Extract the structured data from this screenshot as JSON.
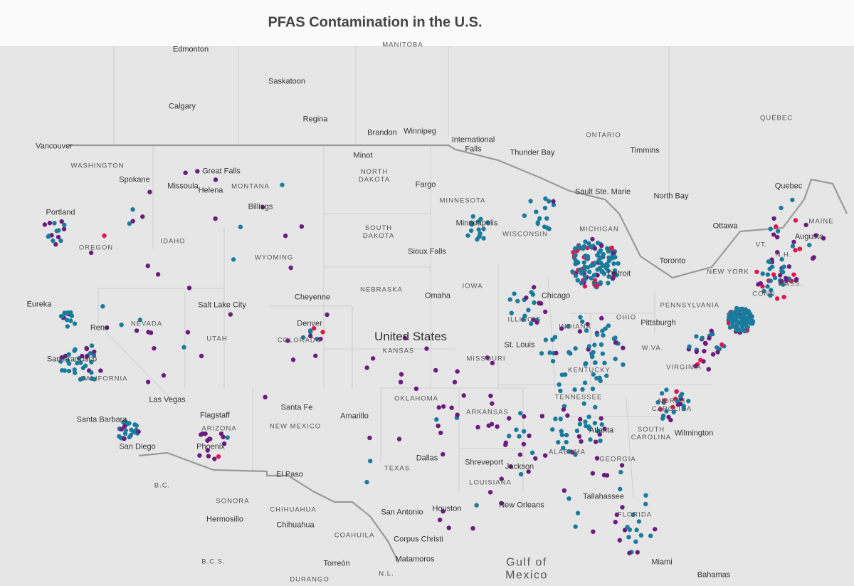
{
  "header": {
    "title": "PFAS Contamination in the U.S."
  },
  "map": {
    "cities": [
      "Edmonton",
      "Saskatoon",
      "Calgary",
      "Regina",
      "Brandon",
      "Winnipeg",
      "International Falls",
      "Thunder Bay",
      "Timmins",
      "Vancouver",
      "Spokane",
      "Missoula",
      "Great Falls",
      "Helena",
      "Billings",
      "Minot",
      "Fargo",
      "Portland",
      "Minneapolis",
      "Sault Ste. Marie",
      "North Bay",
      "Quebec",
      "Ottawa",
      "Augusta",
      "Toronto",
      "Sioux Falls",
      "Omaha",
      "Cheyenne",
      "Salt Lake City",
      "Eureka",
      "Reno",
      "Denver",
      "Chicago",
      "Detroit",
      "Pittsburgh",
      "St. Louis",
      "San Francisco",
      "Las Vegas",
      "Santa Fe",
      "Flagstaff",
      "Amarillo",
      "Santa Barbara",
      "San Diego",
      "Phoenix",
      "Dallas",
      "Shreveport",
      "Jackson",
      "Atlanta",
      "Wilmington",
      "El Paso",
      "Tallahassee",
      "New Orleans",
      "Houston",
      "San Antonio",
      "Corpus Christi",
      "Matamoros",
      "Hermosillo",
      "Chihuahua",
      "Torreón",
      "Miami",
      "Bahamas"
    ],
    "regions": [
      "MANITOBA",
      "ONTARIO",
      "QUÉBEC",
      "WASHINGTON",
      "MONTANA",
      "NORTH DAKOTA",
      "MINNESOTA",
      "SOUTH DAKOTA",
      "WISCONSIN",
      "MICHIGAN",
      "MAINE",
      "VT.",
      "N.H.",
      "MASS.",
      "CONN.",
      "NEW YORK",
      "OREGON",
      "IDAHO",
      "WYOMING",
      "NEBRASKA",
      "IOWA",
      "PENNSYLVANIA",
      "OHIO",
      "INDIANA",
      "ILLINOIS",
      "NEVADA",
      "UTAH",
      "COLORADO",
      "KANSAS",
      "MISSOURI",
      "W.VA.",
      "KENTUCKY",
      "VIRGINIA",
      "CALIFORNIA",
      "TENNESSEE",
      "NORTH CAROLINA",
      "OKLAHOMA",
      "ARKANSAS",
      "ARIZONA",
      "NEW MEXICO",
      "SOUTH CAROLINA",
      "ALABAMA",
      "GEORGIA",
      "TEXAS",
      "LOUISIANA",
      "FLORIDA",
      "B.C.",
      "SONORA",
      "CHIHUAHUA",
      "COAHUILA",
      "B.C.S.",
      "DURANGO",
      "N.L."
    ],
    "country": "United States",
    "water": "Gulf of Mexico"
  }
}
